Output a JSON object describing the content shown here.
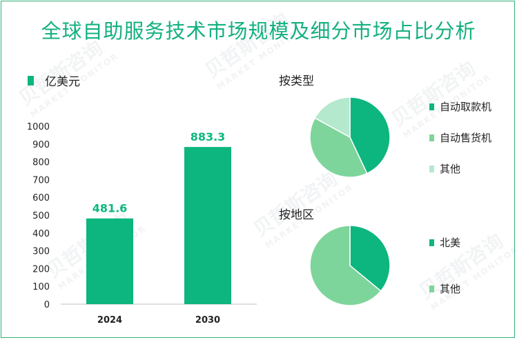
{
  "title": "全球自助服务技术市场规模及细分市场占比分析",
  "watermark": {
    "cn": "贝哲斯咨询",
    "en": "MARKET MONITOR"
  },
  "colors": {
    "accent": "#0db67f",
    "title": "#14b07f",
    "mid": "#7ed59b",
    "light": "#b4e9cd"
  },
  "chart_data": [
    {
      "type": "bar",
      "legend": "亿美元",
      "categories": [
        "2024",
        "2030"
      ],
      "values": [
        481.6,
        883.3
      ],
      "value_labels": [
        "481.6",
        "883.3"
      ],
      "ylim": [
        0,
        1000
      ],
      "yticks": [
        "0",
        "100",
        "200",
        "300",
        "400",
        "500",
        "600",
        "700",
        "800",
        "900",
        "1000"
      ],
      "color": "#0db67f"
    },
    {
      "type": "pie",
      "title": "按类型",
      "labels": [
        "自动取款机",
        "自动售货机",
        "其他"
      ],
      "values": [
        43,
        40,
        17
      ],
      "colors": [
        "#0db67f",
        "#7ed59b",
        "#b4e9cd"
      ]
    },
    {
      "type": "pie",
      "title": "按地区",
      "labels": [
        "北美",
        "其他"
      ],
      "values": [
        36,
        64
      ],
      "colors": [
        "#0db67f",
        "#7ed59b"
      ]
    }
  ]
}
